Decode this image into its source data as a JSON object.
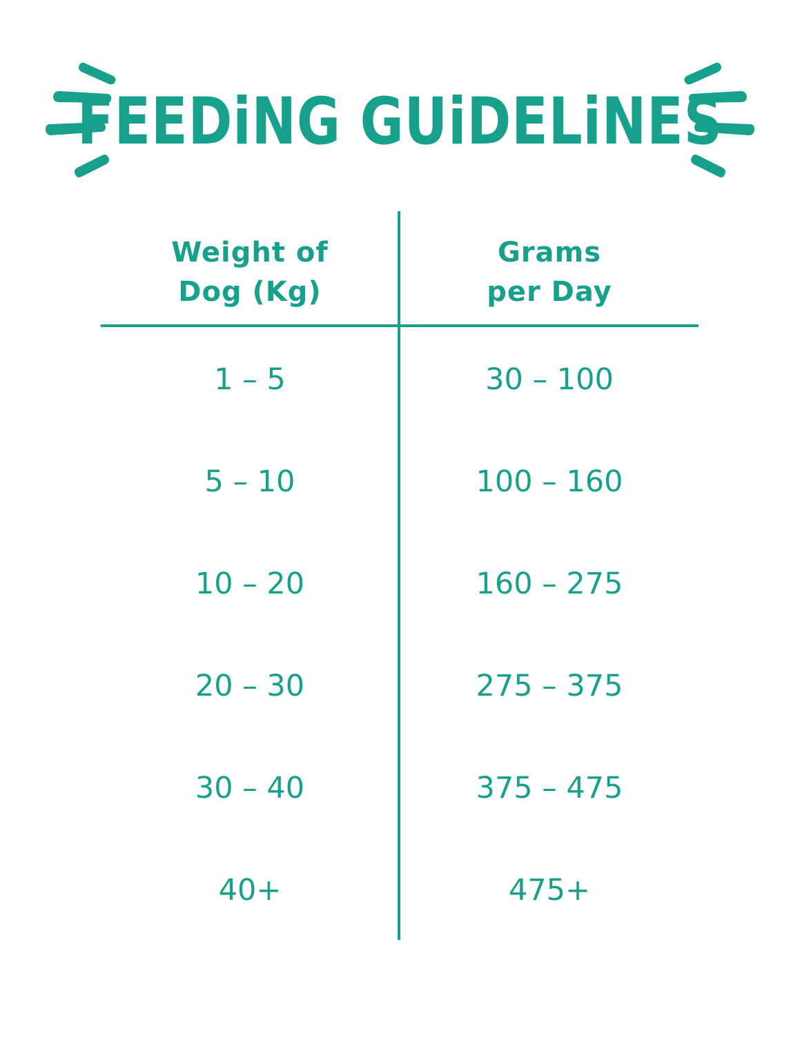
{
  "title": "FEEDiNG GUiDELiNES",
  "accent_color": "#17a08c",
  "decorations": [
    "left-burst-icon",
    "right-burst-icon"
  ],
  "table": {
    "headers": [
      [
        "Weight of",
        "Dog (Kg)"
      ],
      [
        "Grams",
        "per Day"
      ]
    ],
    "rows": [
      [
        "1 – 5",
        "30 – 100"
      ],
      [
        "5 – 10",
        "100 – 160"
      ],
      [
        "10 – 20",
        "160 – 275"
      ],
      [
        "20 – 30",
        "275 – 375"
      ],
      [
        "30 – 40",
        "375 – 475"
      ],
      [
        "40+",
        "475+"
      ]
    ]
  }
}
